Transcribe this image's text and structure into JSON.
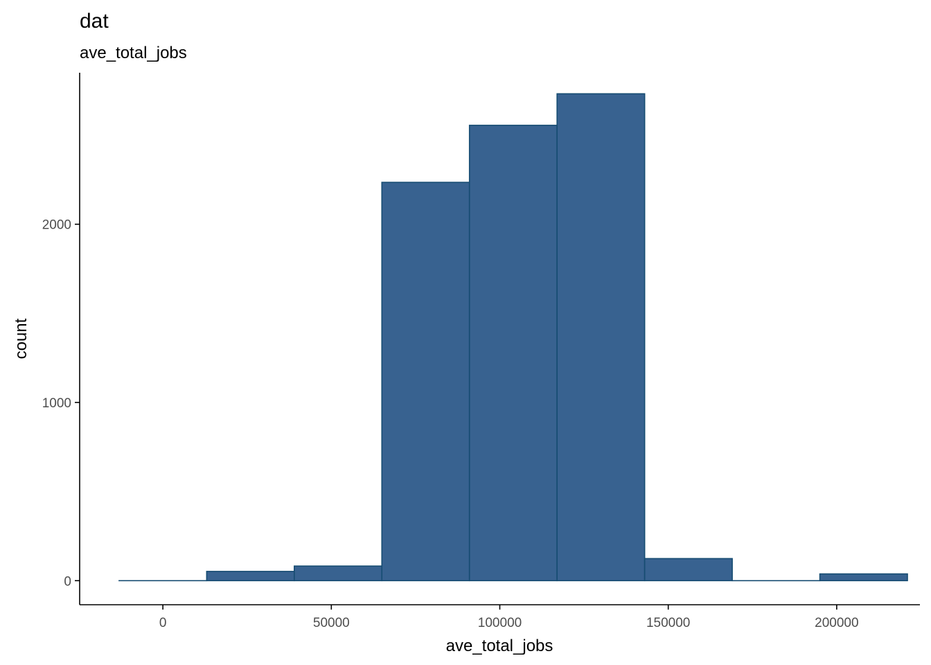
{
  "chart_data": {
    "type": "bar",
    "title": "dat",
    "subtitle": "ave_total_jobs",
    "xlabel": "ave_total_jobs",
    "ylabel": "count",
    "xlim": [
      -24700,
      224700
    ],
    "ylim": [
      -135,
      2850
    ],
    "x_ticks": [
      0,
      50000,
      100000,
      150000,
      200000
    ],
    "x_tick_labels": [
      "0",
      "50000",
      "100000",
      "150000",
      "200000"
    ],
    "y_ticks": [
      0,
      1000,
      2000
    ],
    "y_tick_labels": [
      "0",
      "1000",
      "2000"
    ],
    "grid": false,
    "legend": "none",
    "bins": [
      {
        "x0": -13000,
        "x1": 13000,
        "count": 0
      },
      {
        "x0": 13000,
        "x1": 39000,
        "count": 52
      },
      {
        "x0": 39000,
        "x1": 65000,
        "count": 82
      },
      {
        "x0": 65000,
        "x1": 91000,
        "count": 2235
      },
      {
        "x0": 91000,
        "x1": 117000,
        "count": 2555
      },
      {
        "x0": 117000,
        "x1": 143000,
        "count": 2732
      },
      {
        "x0": 143000,
        "x1": 169000,
        "count": 124
      },
      {
        "x0": 169000,
        "x1": 195000,
        "count": 0
      },
      {
        "x0": 195000,
        "x1": 221000,
        "count": 38
      }
    ],
    "fill": "#386290",
    "stroke": "#164c72"
  }
}
